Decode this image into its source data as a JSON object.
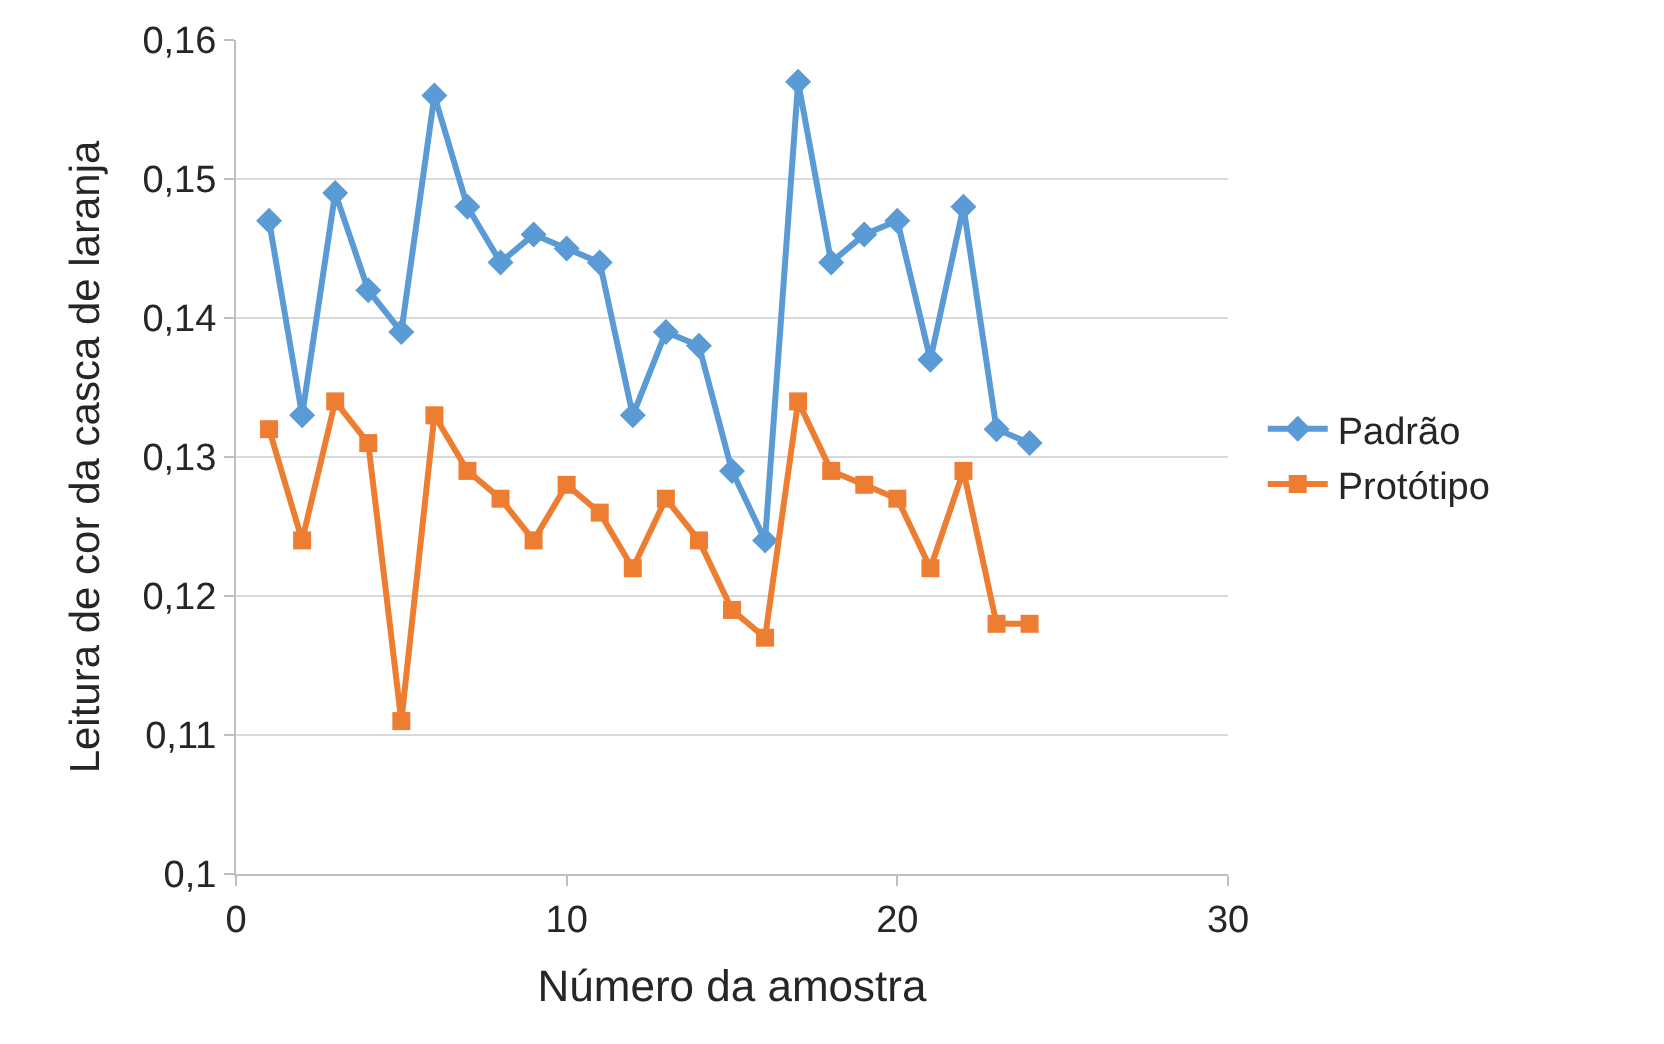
{
  "chart_data": {
    "type": "line",
    "xlabel": "Número da amostra",
    "ylabel": "Leitura de cor da casca de laranja",
    "x": [
      1,
      2,
      3,
      4,
      5,
      6,
      7,
      8,
      9,
      10,
      11,
      12,
      13,
      14,
      15,
      16,
      17,
      18,
      19,
      20,
      21,
      22,
      23,
      24
    ],
    "series": [
      {
        "name": "Padrão",
        "color": "#5b9bd5",
        "marker": "diamond",
        "values": [
          0.147,
          0.133,
          0.149,
          0.142,
          0.139,
          0.156,
          0.148,
          0.144,
          0.146,
          0.145,
          0.144,
          0.133,
          0.139,
          0.138,
          0.129,
          0.124,
          0.157,
          0.144,
          0.146,
          0.147,
          0.137,
          0.148,
          0.132,
          0.131
        ]
      },
      {
        "name": "Protótipo",
        "color": "#ed7d31",
        "marker": "square",
        "values": [
          0.132,
          0.124,
          0.134,
          0.131,
          0.111,
          0.133,
          0.129,
          0.127,
          0.124,
          0.128,
          0.126,
          0.122,
          0.127,
          0.124,
          0.119,
          0.117,
          0.134,
          0.129,
          0.128,
          0.127,
          0.122,
          0.129,
          0.118,
          0.118
        ]
      }
    ],
    "xlim": [
      0,
      30
    ],
    "xticks": [
      0,
      10,
      20,
      30
    ],
    "ylim": [
      0.1,
      0.16
    ],
    "yticks": [
      {
        "value": 0.1,
        "label": "0,1"
      },
      {
        "value": 0.11,
        "label": "0,11"
      },
      {
        "value": 0.12,
        "label": "0,12"
      },
      {
        "value": 0.13,
        "label": "0,13"
      },
      {
        "value": 0.14,
        "label": "0,14"
      },
      {
        "value": 0.15,
        "label": "0,15"
      },
      {
        "value": 0.16,
        "label": "0,16"
      }
    ],
    "grid": "y",
    "legend": "right",
    "line_style": "solid"
  }
}
